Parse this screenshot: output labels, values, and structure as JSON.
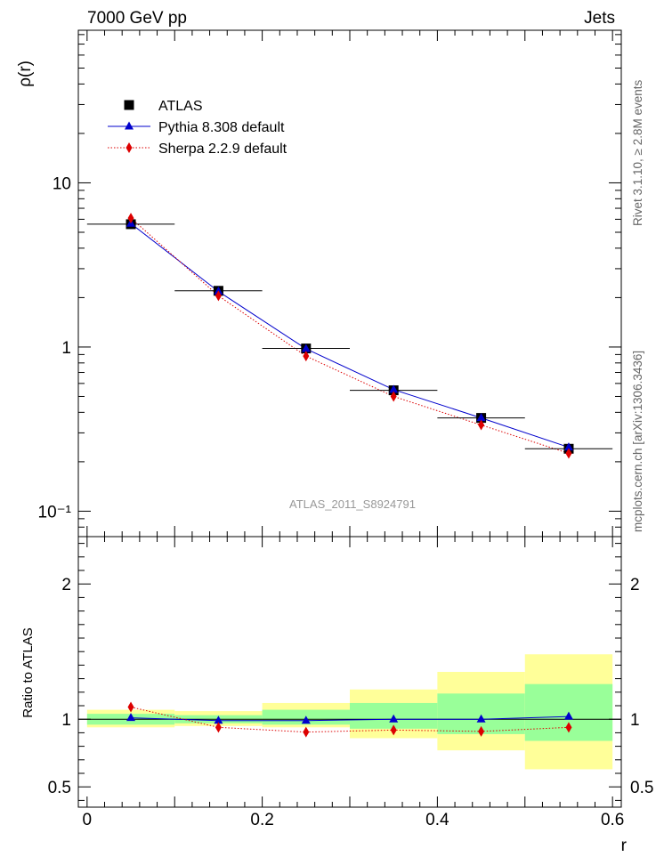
{
  "header": {
    "left": "7000 GeV pp",
    "right": "Jets"
  },
  "side_text": {
    "rivet": "Rivet 3.1.10, ≥ 2.8M events",
    "mcplots": "mcplots.cern.ch [arXiv:1306.3436]"
  },
  "watermark": "ATLAS_2011_S8924791",
  "colors": {
    "data": "#000000",
    "pythia": "#0000cc",
    "sherpa": "#dd0000",
    "band_inner": "#99ff99",
    "band_outer": "#ffff99"
  },
  "chart_data": [
    {
      "type": "scatter",
      "title": "",
      "xlabel": "r",
      "ylabel": "ρ(r)",
      "yscale": "log",
      "xlim": [
        -0.01,
        0.61
      ],
      "ylim": [
        0.07,
        85
      ],
      "yticks": [
        {
          "value": 10,
          "label": "10"
        },
        {
          "value": 1,
          "label": "1"
        },
        {
          "value": 0.1,
          "label": "10⁻¹"
        }
      ],
      "legend_position": "top-left",
      "x": [
        0.05,
        0.15,
        0.25,
        0.35,
        0.45,
        0.55
      ],
      "series": [
        {
          "name": "ATLAS",
          "marker": "square",
          "values": [
            5.6,
            2.2,
            0.98,
            0.545,
            0.37,
            0.24
          ]
        },
        {
          "name": "Pythia 8.308 default",
          "marker": "triangle",
          "line": "solid",
          "values": [
            5.65,
            2.18,
            0.975,
            0.55,
            0.37,
            0.245
          ]
        },
        {
          "name": "Sherpa 2.2.9 default",
          "marker": "diamond",
          "line": "dotted",
          "values": [
            6.1,
            2.05,
            0.88,
            0.5,
            0.335,
            0.225
          ]
        }
      ]
    },
    {
      "type": "scatter",
      "title": "",
      "xlabel": "r",
      "ylabel": "Ratio to ATLAS",
      "ylim": [
        0.35,
        2.35
      ],
      "xticks": [
        0,
        0.2,
        0.4,
        0.6
      ],
      "xtick_labels": [
        "0",
        "0.2",
        "0.4",
        "0.6"
      ],
      "yticks": [
        0.5,
        1,
        2
      ],
      "ytick_labels": [
        "0.5",
        "1",
        "2"
      ],
      "bands": [
        {
          "x0": 0.0,
          "x1": 0.1,
          "inner": [
            0.96,
            1.04
          ],
          "outer": [
            0.94,
            1.07
          ]
        },
        {
          "x0": 0.1,
          "x1": 0.2,
          "inner": [
            0.97,
            1.03
          ],
          "outer": [
            0.95,
            1.06
          ]
        },
        {
          "x0": 0.2,
          "x1": 0.3,
          "inner": [
            0.96,
            1.07
          ],
          "outer": [
            0.94,
            1.12
          ]
        },
        {
          "x0": 0.3,
          "x1": 0.4,
          "inner": [
            0.93,
            1.12
          ],
          "outer": [
            0.86,
            1.22
          ]
        },
        {
          "x0": 0.4,
          "x1": 0.5,
          "inner": [
            0.89,
            1.19
          ],
          "outer": [
            0.77,
            1.35
          ]
        },
        {
          "x0": 0.5,
          "x1": 0.6,
          "inner": [
            0.84,
            1.26
          ],
          "outer": [
            0.63,
            1.48
          ]
        }
      ],
      "x": [
        0.05,
        0.15,
        0.25,
        0.35,
        0.45,
        0.55
      ],
      "series": [
        {
          "name": "Pythia 8.308 default",
          "marker": "triangle",
          "line": "solid",
          "values": [
            1.01,
            0.99,
            0.99,
            1.0,
            1.0,
            1.02
          ]
        },
        {
          "name": "Sherpa 2.2.9 default",
          "marker": "diamond",
          "line": "dotted",
          "values": [
            1.09,
            0.94,
            0.905,
            0.92,
            0.91,
            0.94
          ]
        }
      ]
    }
  ]
}
